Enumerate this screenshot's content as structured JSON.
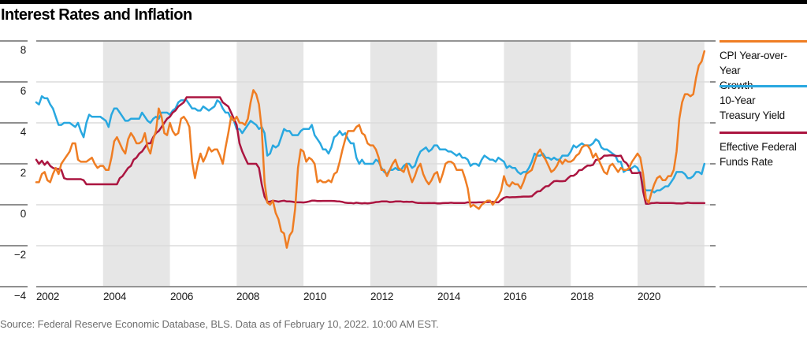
{
  "header": {
    "title": "Interest Rates and Inflation"
  },
  "footer": {
    "source_note": "Source: Federal Reserve Economic Database, BLS. Data as of February 10, 2022. 10:00 AM EST."
  },
  "colors": {
    "band": "#e6e6e6",
    "gridline": "#dbdbdb",
    "axis": "#949494",
    "tick": "#8f8f8f",
    "cpi_orange": "#ef7d23",
    "treasury_blue": "#29a8e0",
    "fedfunds_red": "#ab1540"
  },
  "chart_data": {
    "type": "line",
    "title": "Interest Rates and Inflation",
    "xlabel": "",
    "ylabel": "",
    "x_domain": [
      2002,
      2022.17
    ],
    "ylim": [
      -4,
      8
    ],
    "x_start_year": 2002,
    "x_step_months": 1,
    "grid": "horizontal",
    "legend_position": "right",
    "y_ticks": [
      {
        "value": 8,
        "label": "8"
      },
      {
        "value": 6,
        "label": "6"
      },
      {
        "value": 4,
        "label": "4"
      },
      {
        "value": 2,
        "label": "2"
      },
      {
        "value": 0,
        "label": "0"
      },
      {
        "value": -2,
        "label": "−2"
      },
      {
        "value": -4,
        "label": "−4"
      }
    ],
    "x_ticks": [
      {
        "value": 2002,
        "label": "2002"
      },
      {
        "value": 2004,
        "label": "2004"
      },
      {
        "value": 2006,
        "label": "2006"
      },
      {
        "value": 2008,
        "label": "2008"
      },
      {
        "value": 2010,
        "label": "2010"
      },
      {
        "value": 2012,
        "label": "2012"
      },
      {
        "value": 2014,
        "label": "2014"
      },
      {
        "value": 2016,
        "label": "2016"
      },
      {
        "value": 2018,
        "label": "2018"
      },
      {
        "value": 2020,
        "label": "2020"
      }
    ],
    "shaded_bands_years": [
      [
        2004,
        2006
      ],
      [
        2008,
        2010
      ],
      [
        2012,
        2014
      ],
      [
        2016,
        2018
      ],
      [
        2020,
        2022
      ]
    ],
    "series": [
      {
        "name": "CPI Year-over-Year Growth",
        "legend_lines": [
          "CPI Year-over-Year",
          "Growth"
        ],
        "color": "#ef7d23",
        "values": [
          1.1,
          1.1,
          1.5,
          1.6,
          1.2,
          1.1,
          1.5,
          1.8,
          1.5,
          2.0,
          2.2,
          2.4,
          2.6,
          3.0,
          3.0,
          2.2,
          2.1,
          2.1,
          2.1,
          2.2,
          2.3,
          2.0,
          1.8,
          1.9,
          1.9,
          1.7,
          1.7,
          2.3,
          3.1,
          3.3,
          3.0,
          2.7,
          2.5,
          3.2,
          3.5,
          3.3,
          3.0,
          3.0,
          3.1,
          3.5,
          2.8,
          2.5,
          3.2,
          3.6,
          4.7,
          4.3,
          3.5,
          3.4,
          4.0,
          3.6,
          3.4,
          3.5,
          4.2,
          4.3,
          4.1,
          3.8,
          2.1,
          1.3,
          2.0,
          2.5,
          2.1,
          2.4,
          2.8,
          2.6,
          2.7,
          2.7,
          2.4,
          2.0,
          2.8,
          3.5,
          4.3,
          4.1,
          4.3,
          4.0,
          4.0,
          3.9,
          4.2,
          5.0,
          5.6,
          5.4,
          4.9,
          3.7,
          1.1,
          0.1,
          0.0,
          0.2,
          -0.4,
          -0.7,
          -1.3,
          -1.4,
          -2.1,
          -1.5,
          -1.3,
          -0.2,
          1.8,
          2.7,
          2.6,
          2.1,
          2.3,
          2.2,
          2.0,
          1.1,
          1.2,
          1.1,
          1.1,
          1.2,
          1.1,
          1.5,
          1.6,
          2.1,
          2.7,
          3.2,
          3.6,
          3.6,
          3.6,
          3.8,
          3.9,
          3.5,
          3.4,
          3.0,
          2.9,
          2.9,
          2.7,
          2.3,
          1.7,
          1.7,
          1.4,
          1.7,
          2.0,
          2.2,
          1.8,
          1.7,
          1.6,
          2.0,
          1.5,
          1.1,
          1.4,
          1.8,
          2.0,
          1.5,
          1.2,
          1.0,
          1.2,
          1.5,
          1.6,
          1.1,
          1.5,
          2.0,
          2.1,
          2.1,
          2.0,
          1.7,
          1.7,
          1.7,
          1.3,
          0.8,
          -0.1,
          0.0,
          -0.1,
          -0.2,
          0.0,
          0.1,
          0.2,
          0.2,
          0.0,
          0.2,
          0.4,
          0.7,
          1.4,
          1.0,
          0.9,
          1.1,
          1.0,
          1.0,
          0.8,
          1.1,
          1.5,
          1.6,
          1.7,
          2.1,
          2.5,
          2.7,
          2.4,
          2.2,
          1.9,
          1.6,
          1.7,
          1.9,
          2.2,
          2.0,
          2.2,
          2.1,
          2.1,
          2.2,
          2.4,
          2.5,
          2.8,
          2.9,
          2.9,
          2.7,
          2.3,
          2.5,
          2.2,
          1.9,
          1.6,
          1.5,
          1.9,
          2.0,
          1.8,
          1.6,
          1.8,
          1.7,
          1.7,
          1.8,
          2.1,
          2.3,
          2.5,
          2.3,
          1.5,
          0.3,
          0.1,
          0.6,
          1.0,
          1.3,
          1.4,
          1.2,
          1.2,
          1.4,
          1.4,
          1.7,
          2.6,
          4.2,
          5.0,
          5.4,
          5.4,
          5.3,
          5.4,
          6.2,
          6.8,
          7.0,
          7.5
        ]
      },
      {
        "name": "10-Year Treasury Yield",
        "legend_lines": [
          "10-Year",
          "Treasury Yield"
        ],
        "color": "#29a8e0",
        "values": [
          5.0,
          4.9,
          5.3,
          5.2,
          5.2,
          4.9,
          4.7,
          4.3,
          3.9,
          3.9,
          4.0,
          4.0,
          4.0,
          3.9,
          3.8,
          4.0,
          3.6,
          3.3,
          4.0,
          4.4,
          4.3,
          4.3,
          4.3,
          4.3,
          4.2,
          4.1,
          3.8,
          4.4,
          4.7,
          4.7,
          4.5,
          4.3,
          4.1,
          4.1,
          4.2,
          4.2,
          4.2,
          4.2,
          4.5,
          4.3,
          4.1,
          4.0,
          4.2,
          4.3,
          4.2,
          4.5,
          4.5,
          4.5,
          4.4,
          4.6,
          4.7,
          5.0,
          5.1,
          5.1,
          5.1,
          4.9,
          4.7,
          4.7,
          4.6,
          4.6,
          4.8,
          4.7,
          4.6,
          4.7,
          4.8,
          5.1,
          5.0,
          4.7,
          4.5,
          4.5,
          4.2,
          4.1,
          3.7,
          3.7,
          3.5,
          3.7,
          3.9,
          4.1,
          4.0,
          3.9,
          3.7,
          3.8,
          3.5,
          2.4,
          2.5,
          2.9,
          2.8,
          2.9,
          3.3,
          3.7,
          3.6,
          3.6,
          3.4,
          3.4,
          3.4,
          3.6,
          3.7,
          3.7,
          3.7,
          3.9,
          3.4,
          3.2,
          3.0,
          2.7,
          2.7,
          2.5,
          2.8,
          3.3,
          3.4,
          3.6,
          3.4,
          3.5,
          3.2,
          3.0,
          3.0,
          2.3,
          2.0,
          2.2,
          2.0,
          2.0,
          2.0,
          2.0,
          2.2,
          2.1,
          1.8,
          1.6,
          1.5,
          1.7,
          1.7,
          1.8,
          1.7,
          1.7,
          1.9,
          2.0,
          2.0,
          1.8,
          1.9,
          2.3,
          2.6,
          2.7,
          2.8,
          2.6,
          2.7,
          2.9,
          2.9,
          2.7,
          2.7,
          2.7,
          2.6,
          2.6,
          2.5,
          2.4,
          2.5,
          2.3,
          2.3,
          2.2,
          1.9,
          2.0,
          2.0,
          1.9,
          2.2,
          2.4,
          2.3,
          2.2,
          2.2,
          2.1,
          2.3,
          2.2,
          2.1,
          1.8,
          1.9,
          1.8,
          1.8,
          1.6,
          1.5,
          1.6,
          1.6,
          1.8,
          2.1,
          2.5,
          2.4,
          2.4,
          2.5,
          2.3,
          2.3,
          2.2,
          2.3,
          2.2,
          2.2,
          2.4,
          2.4,
          2.4,
          2.6,
          2.9,
          2.8,
          2.9,
          3.0,
          2.9,
          2.9,
          2.9,
          3.0,
          3.2,
          3.1,
          2.8,
          2.7,
          2.7,
          2.6,
          2.5,
          2.4,
          2.1,
          2.1,
          1.6,
          1.7,
          1.7,
          1.8,
          1.9,
          1.8,
          1.5,
          0.9,
          0.7,
          0.7,
          0.7,
          0.6,
          0.7,
          0.7,
          0.8,
          0.9,
          0.9,
          1.1,
          1.3,
          1.6,
          1.6,
          1.6,
          1.5,
          1.3,
          1.3,
          1.4,
          1.6,
          1.6,
          1.5,
          2.0
        ]
      },
      {
        "name": "Effective Federal Funds Rate",
        "legend_lines": [
          "Effective Federal",
          "Funds Rate"
        ],
        "color": "#ab1540",
        "values": [
          2.2,
          2.0,
          2.15,
          1.95,
          2.1,
          1.9,
          1.8,
          1.75,
          1.75,
          1.7,
          1.3,
          1.25,
          1.25,
          1.25,
          1.25,
          1.25,
          1.25,
          1.2,
          1.0,
          1.0,
          1.0,
          1.0,
          1.0,
          1.0,
          1.0,
          1.0,
          1.0,
          1.0,
          1.0,
          1.0,
          1.3,
          1.4,
          1.6,
          1.8,
          1.9,
          2.2,
          2.3,
          2.5,
          2.6,
          2.8,
          3.0,
          3.0,
          3.3,
          3.5,
          3.6,
          3.8,
          4.0,
          4.2,
          4.3,
          4.5,
          4.6,
          4.8,
          4.9,
          5.0,
          5.25,
          5.25,
          5.25,
          5.25,
          5.25,
          5.25,
          5.25,
          5.25,
          5.25,
          5.25,
          5.25,
          5.25,
          5.25,
          5.0,
          4.9,
          4.8,
          4.5,
          4.2,
          3.9,
          3.0,
          2.6,
          2.3,
          2.0,
          2.0,
          2.0,
          2.0,
          1.8,
          1.0,
          0.4,
          0.15,
          0.15,
          0.2,
          0.18,
          0.15,
          0.18,
          0.2,
          0.16,
          0.16,
          0.15,
          0.12,
          0.12,
          0.12,
          0.11,
          0.13,
          0.16,
          0.2,
          0.2,
          0.18,
          0.18,
          0.19,
          0.19,
          0.19,
          0.19,
          0.18,
          0.17,
          0.16,
          0.14,
          0.1,
          0.09,
          0.09,
          0.07,
          0.1,
          0.08,
          0.07,
          0.08,
          0.07,
          0.08,
          0.1,
          0.13,
          0.14,
          0.16,
          0.16,
          0.16,
          0.13,
          0.14,
          0.16,
          0.16,
          0.16,
          0.14,
          0.15,
          0.14,
          0.15,
          0.11,
          0.09,
          0.09,
          0.08,
          0.08,
          0.09,
          0.08,
          0.09,
          0.07,
          0.07,
          0.08,
          0.09,
          0.09,
          0.1,
          0.09,
          0.09,
          0.09,
          0.09,
          0.09,
          0.12,
          0.11,
          0.11,
          0.11,
          0.12,
          0.12,
          0.13,
          0.13,
          0.14,
          0.14,
          0.12,
          0.12,
          0.24,
          0.34,
          0.38,
          0.36,
          0.37,
          0.37,
          0.38,
          0.39,
          0.4,
          0.4,
          0.4,
          0.41,
          0.54,
          0.65,
          0.66,
          0.79,
          0.9,
          0.91,
          1.04,
          1.15,
          1.16,
          1.15,
          1.15,
          1.16,
          1.3,
          1.41,
          1.42,
          1.51,
          1.69,
          1.7,
          1.82,
          1.91,
          1.91,
          1.95,
          2.19,
          2.2,
          2.27,
          2.4,
          2.4,
          2.41,
          2.42,
          2.39,
          2.38,
          2.4,
          2.13,
          2.04,
          1.83,
          1.55,
          1.55,
          1.55,
          1.58,
          0.65,
          0.05,
          0.05,
          0.08,
          0.09,
          0.1,
          0.09,
          0.09,
          0.09,
          0.09,
          0.09,
          0.08,
          0.07,
          0.07,
          0.06,
          0.08,
          0.1,
          0.09,
          0.08,
          0.08,
          0.08,
          0.08,
          0.08
        ]
      }
    ]
  }
}
